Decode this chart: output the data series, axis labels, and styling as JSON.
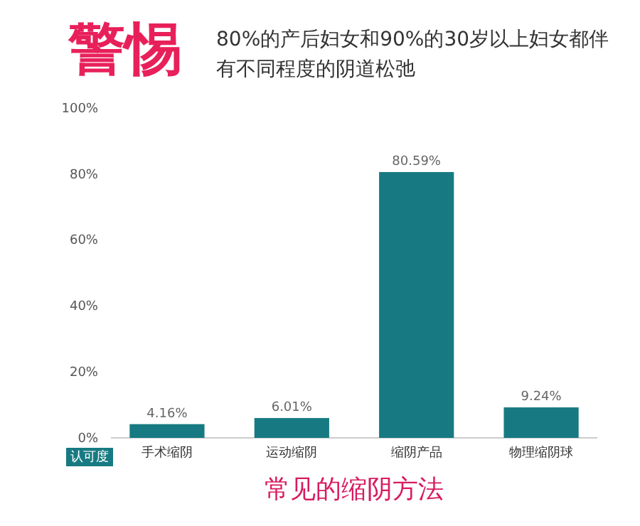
{
  "chart_data": {
    "type": "bar",
    "title": "警惕",
    "subtitle": "80%的产后妇女和90%的30岁以上妇女都伴有不同程度的阴道松弛",
    "xlabel": "常见的缩阴方法",
    "ylabel": "认可度",
    "categories": [
      "手术缩阴",
      "运动缩阴",
      "缩阴产品",
      "物理缩阴球"
    ],
    "values": [
      4.16,
      6.01,
      80.59,
      9.24
    ],
    "value_labels": [
      "4.16%",
      "6.01%",
      "80.59%",
      "9.24%"
    ],
    "color": "#177a82",
    "ylim": [
      0,
      100
    ],
    "yticks": [
      {
        "value": 0,
        "label": "0%"
      },
      {
        "value": 20,
        "label": "20%"
      },
      {
        "value": 40,
        "label": "40%"
      },
      {
        "value": 60,
        "label": "60%"
      },
      {
        "value": 80,
        "label": "80%"
      },
      {
        "value": 100,
        "label": "100%"
      }
    ],
    "grid": false
  }
}
